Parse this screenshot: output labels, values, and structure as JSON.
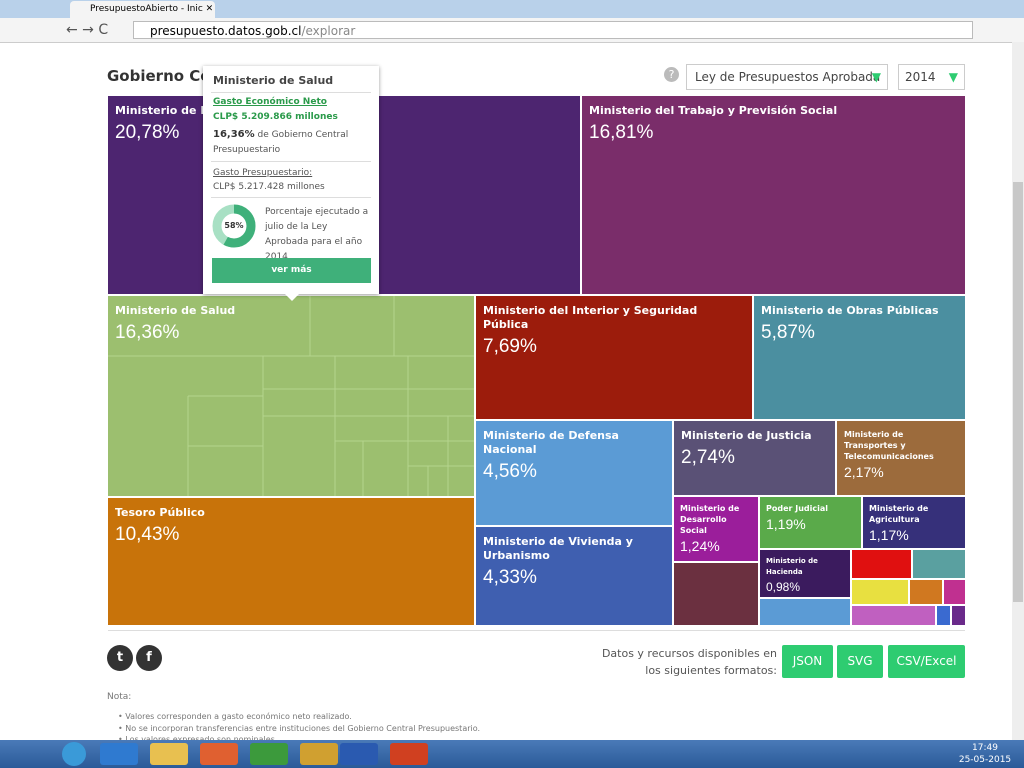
{
  "browser": {
    "tab_title": "PresupuestoAbierto - Inic",
    "url_host": "presupuesto.datos.gob.cl",
    "url_path": "/explorar"
  },
  "page": {
    "title": "Gobierno Central",
    "selector": "Ley de Presupuestos Aprobada",
    "year": "2014",
    "help": "?"
  },
  "treemap": {
    "tiles": [
      {
        "name": "Ministerio de Educación",
        "share": "20,78%"
      },
      {
        "name": "Ministerio del Trabajo y Previsión Social",
        "share": "16,81%"
      },
      {
        "name": "Ministerio de Salud",
        "share": "16,36%"
      },
      {
        "name": "Ministerio del Interior y Seguridad Pública",
        "share": "7,69%"
      },
      {
        "name": "Ministerio de Obras Públicas",
        "share": "5,87%"
      },
      {
        "name": "Ministerio de Defensa Nacional",
        "share": "4,56%"
      },
      {
        "name": "Ministerio de Justicia",
        "share": "2,74%"
      },
      {
        "name": "Ministerio de Transportes y Telecomunicaciones",
        "share": "2,17%"
      },
      {
        "name": "Tesoro Público",
        "share": "10,43%"
      },
      {
        "name": "Ministerio de Vivienda y Urbanismo",
        "share": "4,33%"
      },
      {
        "name": "Ministerio de Desarrollo Social",
        "share": "1,24%"
      },
      {
        "name": "Poder Judicial",
        "share": "1,19%"
      },
      {
        "name": "Ministerio de Agricultura",
        "share": "1,17%"
      },
      {
        "name": "Ministerio de Hacienda",
        "share": "0,98%"
      }
    ]
  },
  "tooltip": {
    "title": "Ministerio de Salud",
    "net_label": "Gasto Económico Neto",
    "net_value": "CLP$ 5.209.866 millones",
    "share": "16,36%",
    "share_text": " de Gobierno Central Presupuestario",
    "budget_label": "Gasto Presupuestario:",
    "budget_value": "CLP$ 5.217.428 millones",
    "executed": "58%",
    "executed_text": "Porcentaje ejecutado a julio de la Ley Aprobada para el año 2014",
    "button": "ver más"
  },
  "footer": {
    "formats_text": "Datos y recursos disponibles en los siguientes formatos:",
    "formats": [
      "JSON",
      "SVG",
      "CSV/Excel"
    ],
    "social": [
      "t",
      "f"
    ],
    "note_title": "Nota:",
    "notes": [
      "Valores corresponden a gasto económico neto realizado.",
      "No se incorporan transferencias entre instituciones del Gobierno Central Presupuestario.",
      "Los valores expresado son nominales."
    ]
  },
  "taskbar": {
    "time": "17:49",
    "date": "25-05-2015"
  }
}
